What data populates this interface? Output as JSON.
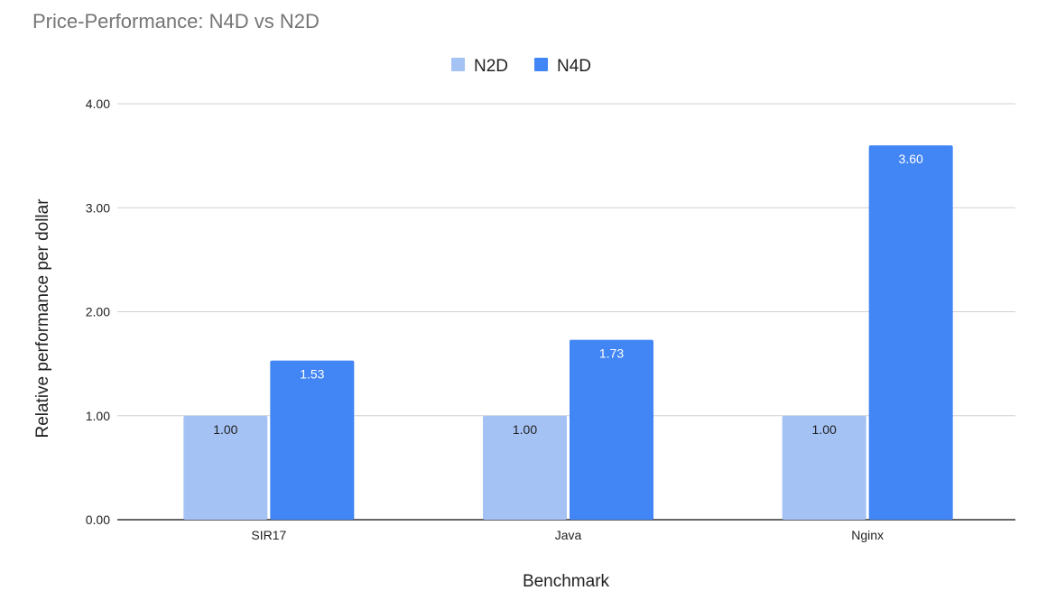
{
  "chart_data": {
    "type": "bar",
    "title": "Price-Performance: N4D vs N2D",
    "xlabel": "Benchmark",
    "ylabel": "Relative performance per dollar",
    "categories": [
      "SIR17",
      "Java",
      "Nginx"
    ],
    "series": [
      {
        "name": "N2D",
        "values": [
          1.0,
          1.0,
          1.0
        ],
        "color": "#a4c2f4",
        "label_color": "#222222"
      },
      {
        "name": "N4D",
        "values": [
          1.53,
          1.73,
          3.6
        ],
        "color": "#4285f4",
        "label_color": "#ffffff"
      }
    ],
    "ylim": [
      0,
      4
    ],
    "yticks": [
      "0.00",
      "1.00",
      "2.00",
      "3.00",
      "4.00"
    ],
    "grid": true,
    "legend": "top-center",
    "data_labels": [
      [
        "1.00",
        "1.00",
        "1.00"
      ],
      [
        "1.53",
        "1.73",
        "3.60"
      ]
    ]
  }
}
